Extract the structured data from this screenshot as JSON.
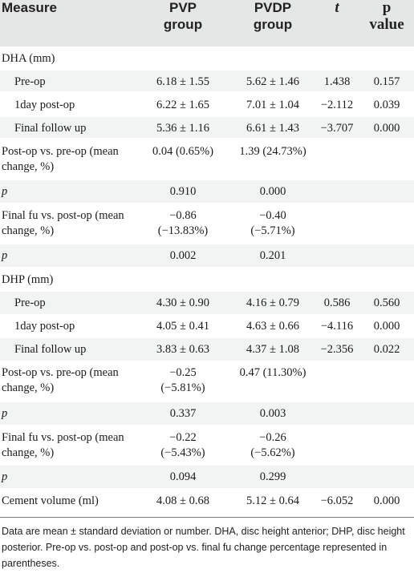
{
  "header": {
    "measure": "Measure",
    "pvp": "PVP\ngroup",
    "pvdp": "PVDP\ngroup",
    "t": "t",
    "p": "p\nvalue"
  },
  "rows": [
    {
      "label": "DHA (mm)",
      "pvp": "",
      "pvdp": "",
      "t": "",
      "p": ""
    },
    {
      "label": "Pre-op",
      "pvp": "6.18 ± 1.55",
      "pvdp": "5.62 ± 1.46",
      "t": "1.438",
      "p": "0.157"
    },
    {
      "label": "1day post-op",
      "pvp": "6.22 ± 1.65",
      "pvdp": "7.01 ± 1.04",
      "t": "−2.112",
      "p": "0.039"
    },
    {
      "label": "Final follow up",
      "pvp": "5.36 ± 1.16",
      "pvdp": "6.61 ± 1.43",
      "t": "−3.707",
      "p": "0.000"
    },
    {
      "label": "Post-op vs. pre-op (mean change, %)",
      "pvp": "0.04 (0.65%)",
      "pvdp": "1.39 (24.73%)",
      "t": "",
      "p": ""
    },
    {
      "label": "p",
      "pvp": "0.910",
      "pvdp": "0.000",
      "t": "",
      "p": ""
    },
    {
      "label": "Final fu vs. post-op (mean change, %)",
      "pvp": "−0.86\n(−13.83%)",
      "pvdp": "−0.40\n(−5.71%)",
      "t": "",
      "p": ""
    },
    {
      "label": "p",
      "pvp": "0.002",
      "pvdp": "0.201",
      "t": "",
      "p": ""
    },
    {
      "label": "DHP (mm)",
      "pvp": "",
      "pvdp": "",
      "t": "",
      "p": ""
    },
    {
      "label": "Pre-op",
      "pvp": "4.30 ± 0.90",
      "pvdp": "4.16 ± 0.79",
      "t": "0.586",
      "p": "0.560"
    },
    {
      "label": "1day post-op",
      "pvp": "4.05 ± 0.41",
      "pvdp": "4.63 ± 0.66",
      "t": "−4.116",
      "p": "0.000"
    },
    {
      "label": "Final follow up",
      "pvp": "3.83 ± 0.63",
      "pvdp": "4.37 ± 1.08",
      "t": "−2.356",
      "p": "0.022"
    },
    {
      "label": "Post-op vs. pre-op (mean change, %)",
      "pvp": "−0.25\n(−5.81%)",
      "pvdp": "0.47 (11.30%)",
      "t": "",
      "p": ""
    },
    {
      "label": "p",
      "pvp": "0.337",
      "pvdp": "0.003",
      "t": "",
      "p": ""
    },
    {
      "label": "Final fu vs. post-op (mean change, %)",
      "pvp": "−0.22\n(−5.43%)",
      "pvdp": "−0.26\n(−5.62%)",
      "t": "",
      "p": ""
    },
    {
      "label": "p",
      "pvp": "0.094",
      "pvdp": "0.299",
      "t": "",
      "p": ""
    },
    {
      "label": "Cement volume (ml)",
      "pvp": "4.08 ± 0.68",
      "pvdp": "5.12 ± 0.64",
      "t": "−6.052",
      "p": "0.000"
    }
  ],
  "footnote": "Data are mean ± standard deviation or number. DHA, disc height anterior; DHP, disc height posterior. Pre-op vs. post-op and post-op vs. final fu change percentage represented in parentheses.",
  "colors": {
    "header_bg": "#e5e6e6",
    "band_bg": "#f2f3f3",
    "rule": "#777777"
  }
}
